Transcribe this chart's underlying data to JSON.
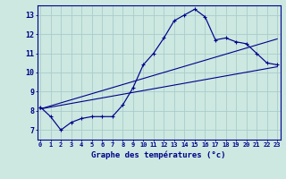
{
  "xlabel": "Graphe des températures (°c)",
  "background_color": "#cce8e0",
  "grid_color": "#aacccc",
  "line_color": "#00008b",
  "hours": [
    0,
    1,
    2,
    3,
    4,
    5,
    6,
    7,
    8,
    9,
    10,
    11,
    12,
    13,
    14,
    15,
    16,
    17,
    18,
    19,
    20,
    21,
    22,
    23
  ],
  "temp_main": [
    8.2,
    7.7,
    7.0,
    7.4,
    7.6,
    7.7,
    7.7,
    7.7,
    8.3,
    9.2,
    10.4,
    11.0,
    11.8,
    12.7,
    13.0,
    13.3,
    12.9,
    11.7,
    11.8,
    11.6,
    11.5,
    11.0,
    10.5,
    10.4
  ],
  "trend1_x": [
    0,
    23
  ],
  "trend1_y": [
    8.1,
    10.3
  ],
  "trend2_x": [
    0,
    23
  ],
  "trend2_y": [
    8.1,
    11.75
  ],
  "ylim": [
    6.5,
    13.5
  ],
  "xlim": [
    -0.3,
    23.3
  ],
  "yticks": [
    7,
    8,
    9,
    10,
    11,
    12,
    13
  ],
  "xticks": [
    0,
    1,
    2,
    3,
    4,
    5,
    6,
    7,
    8,
    9,
    10,
    11,
    12,
    13,
    14,
    15,
    16,
    17,
    18,
    19,
    20,
    21,
    22,
    23
  ]
}
